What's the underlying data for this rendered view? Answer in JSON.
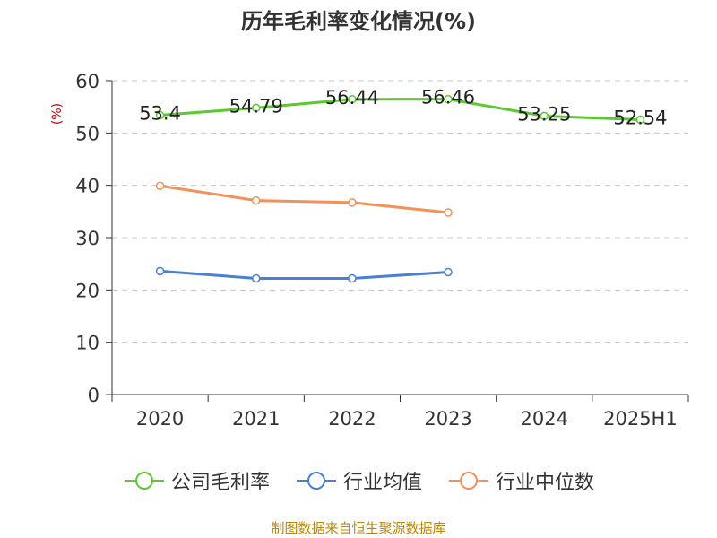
{
  "chart_data": {
    "type": "line",
    "title": "历年毛利率变化情况(%)",
    "ylabel": "(%)",
    "xlabel": "",
    "categories": [
      "2020",
      "2021",
      "2022",
      "2023",
      "2024",
      "2025H1"
    ],
    "ylim": [
      0,
      60
    ],
    "yticks": [
      0,
      10,
      20,
      30,
      40,
      50,
      60
    ],
    "grid": true,
    "legend_position": "bottom",
    "series": [
      {
        "name": "公司毛利率",
        "color": "#5cc832",
        "values": [
          53.4,
          54.79,
          56.44,
          56.46,
          53.25,
          52.54
        ],
        "labels": [
          "53.4",
          "54.79",
          "56.44",
          "56.46",
          "53.25",
          "52.54"
        ]
      },
      {
        "name": "行业均值",
        "color": "#4a7fd6",
        "values": [
          23.6,
          22.2,
          22.2,
          23.4,
          null,
          null
        ]
      },
      {
        "name": "行业中位数",
        "color": "#f4915a",
        "values": [
          39.9,
          37.1,
          36.7,
          34.8,
          null,
          null
        ]
      }
    ]
  },
  "source": "制图数据来自恒生聚源数据库"
}
